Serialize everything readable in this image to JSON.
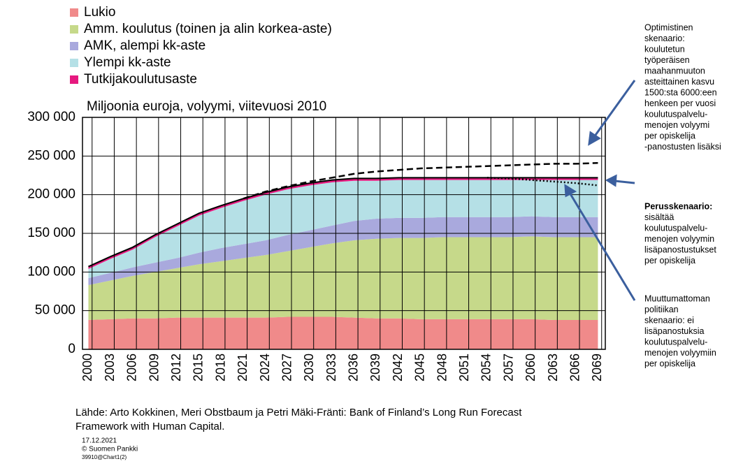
{
  "chart_data": {
    "type": "stacked_area",
    "subtitle": "Miljoonia euroja, volyymi, viitevuosi 2010",
    "x": [
      2000,
      2003,
      2006,
      2009,
      2012,
      2015,
      2018,
      2021,
      2024,
      2027,
      2030,
      2033,
      2036,
      2039,
      2042,
      2045,
      2048,
      2051,
      2054,
      2057,
      2060,
      2063,
      2066,
      2069
    ],
    "series": [
      {
        "name": "Lukio",
        "color": "#f08a8a",
        "values": [
          38000,
          39000,
          40000,
          40000,
          41000,
          41000,
          41000,
          41000,
          41000,
          42000,
          42000,
          42000,
          41000,
          40000,
          40000,
          39000,
          39000,
          39000,
          39000,
          39000,
          39000,
          38000,
          38000,
          38000
        ]
      },
      {
        "name": "Amm. koulutus (toinen ja alin korkea-aste)",
        "color": "#c6d98a",
        "values": [
          45000,
          50000,
          55000,
          60000,
          64000,
          69000,
          73000,
          77000,
          81000,
          85000,
          90000,
          95000,
          100000,
          103000,
          104000,
          105000,
          106000,
          106000,
          106000,
          106000,
          107000,
          107000,
          107000,
          107000
        ]
      },
      {
        "name": "AMK, alempi kk-aste",
        "color": "#a9a9dd",
        "values": [
          9000,
          10000,
          11000,
          12000,
          13000,
          15000,
          17000,
          18000,
          19000,
          21000,
          22000,
          23000,
          25000,
          26000,
          26000,
          26000,
          26000,
          26000,
          26000,
          26000,
          26000,
          26000,
          26000,
          26000
        ]
      },
      {
        "name": "Ylempi kk-aste",
        "color": "#b5e0e6",
        "values": [
          12000,
          18000,
          23000,
          33000,
          41000,
          48000,
          52000,
          56000,
          59000,
          59000,
          58000,
          56000,
          52000,
          49000,
          49000,
          49000,
          48000,
          48000,
          48000,
          48000,
          47000,
          48000,
          48000,
          48000
        ]
      },
      {
        "name": "Tutkijakoulutusaste",
        "color": "#e6197f",
        "values": [
          3000,
          3000,
          3000,
          3000,
          3000,
          3000,
          3000,
          3000,
          3000,
          3000,
          3000,
          3000,
          3000,
          3000,
          3000,
          3000,
          3000,
          3000,
          3000,
          3000,
          3000,
          3000,
          3000,
          3000
        ]
      }
    ],
    "scenario_lines": [
      {
        "style": "dashed",
        "values": [
          null,
          null,
          null,
          null,
          null,
          null,
          null,
          195000,
          204000,
          211000,
          217000,
          222000,
          227000,
          230000,
          232000,
          234000,
          235000,
          236000,
          237000,
          238000,
          239000,
          240000,
          240000,
          241000
        ]
      },
      {
        "style": "dotted",
        "values": [
          null,
          null,
          null,
          null,
          null,
          null,
          null,
          null,
          null,
          null,
          null,
          null,
          null,
          null,
          null,
          null,
          null,
          null,
          222000,
          221000,
          219000,
          217000,
          215000,
          212000
        ]
      }
    ],
    "xlim": [
      1999.2,
      2070
    ],
    "xticks": [
      2000,
      2003,
      2006,
      2009,
      2012,
      2015,
      2018,
      2021,
      2024,
      2027,
      2030,
      2033,
      2036,
      2039,
      2042,
      2045,
      2048,
      2051,
      2054,
      2057,
      2060,
      2063,
      2066,
      2069
    ],
    "ylim": [
      0,
      300000
    ],
    "yticks": [
      0,
      {
        "value": 50000,
        "label": "50 000"
      },
      {
        "value": 100000,
        "label": "100 000"
      },
      {
        "value": 150000,
        "label": "150 000"
      },
      {
        "value": 200000,
        "label": "200 000"
      },
      {
        "value": 250000,
        "label": "250 000"
      },
      {
        "value": 300000,
        "label": "300 000"
      }
    ],
    "grid": true,
    "annotations": [
      {
        "lines": [
          "Optimistinen",
          "skenaario:",
          "koulutetun",
          "työperäisen",
          "maahanmuuton",
          "asteittainen kasvu",
          "1500:sta 6000:een",
          "henkeen per vuosi",
          "koulutuspalvelu-",
          "menojen volyymi",
          "per opiskelija",
          "-panostusten lisäksi"
        ]
      },
      {
        "bold": "Perusskenaario:",
        "lines": [
          "sisältää",
          "koulutuspalvelu-",
          "menojen volyymin",
          "lisäpanostustukset",
          "per opiskelija"
        ]
      },
      {
        "lines": [
          "Muuttumattoman",
          "politiikan",
          "skenaario: ei",
          "lisäpanostuksia",
          "koulutuspalvelu-",
          "menojen volyymiin",
          "per opiskelija"
        ]
      }
    ],
    "source": [
      "Lähde: Arto Kokkinen, Meri Obstbaum ja Petri Mäki-Fränti: Bank of Finland’s Long Run Forecast",
      "Framework with Human Capital."
    ],
    "footer": [
      "17.12.2021",
      "© Suomen Pankki",
      "39910@Chart1(2)"
    ]
  }
}
